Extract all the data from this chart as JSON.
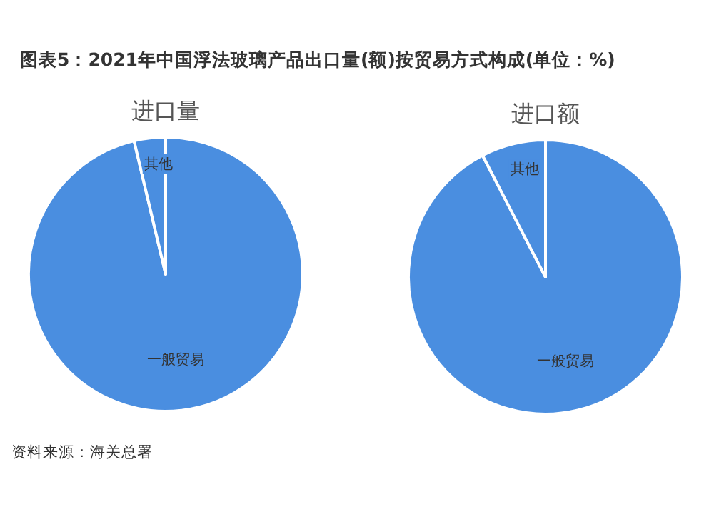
{
  "chart_data": [
    {
      "type": "other",
      "title": "图表5：2021年中国浮法玻璃产品出口量(额)按贸易方式构成(单位：%)",
      "annotations": [
        "资料来源：海关总署"
      ]
    },
    {
      "type": "pie",
      "title": "进口量",
      "categories": [
        "一般贸易",
        "其他"
      ],
      "values": [
        96.3,
        3.7
      ],
      "colors": [
        "#4a8ee0",
        "#4a8ee0"
      ]
    },
    {
      "type": "pie",
      "title": "进口额",
      "categories": [
        "一般贸易",
        "其他"
      ],
      "values": [
        92.4,
        7.6
      ],
      "colors": [
        "#4a8ee0",
        "#4a8ee0"
      ]
    }
  ]
}
